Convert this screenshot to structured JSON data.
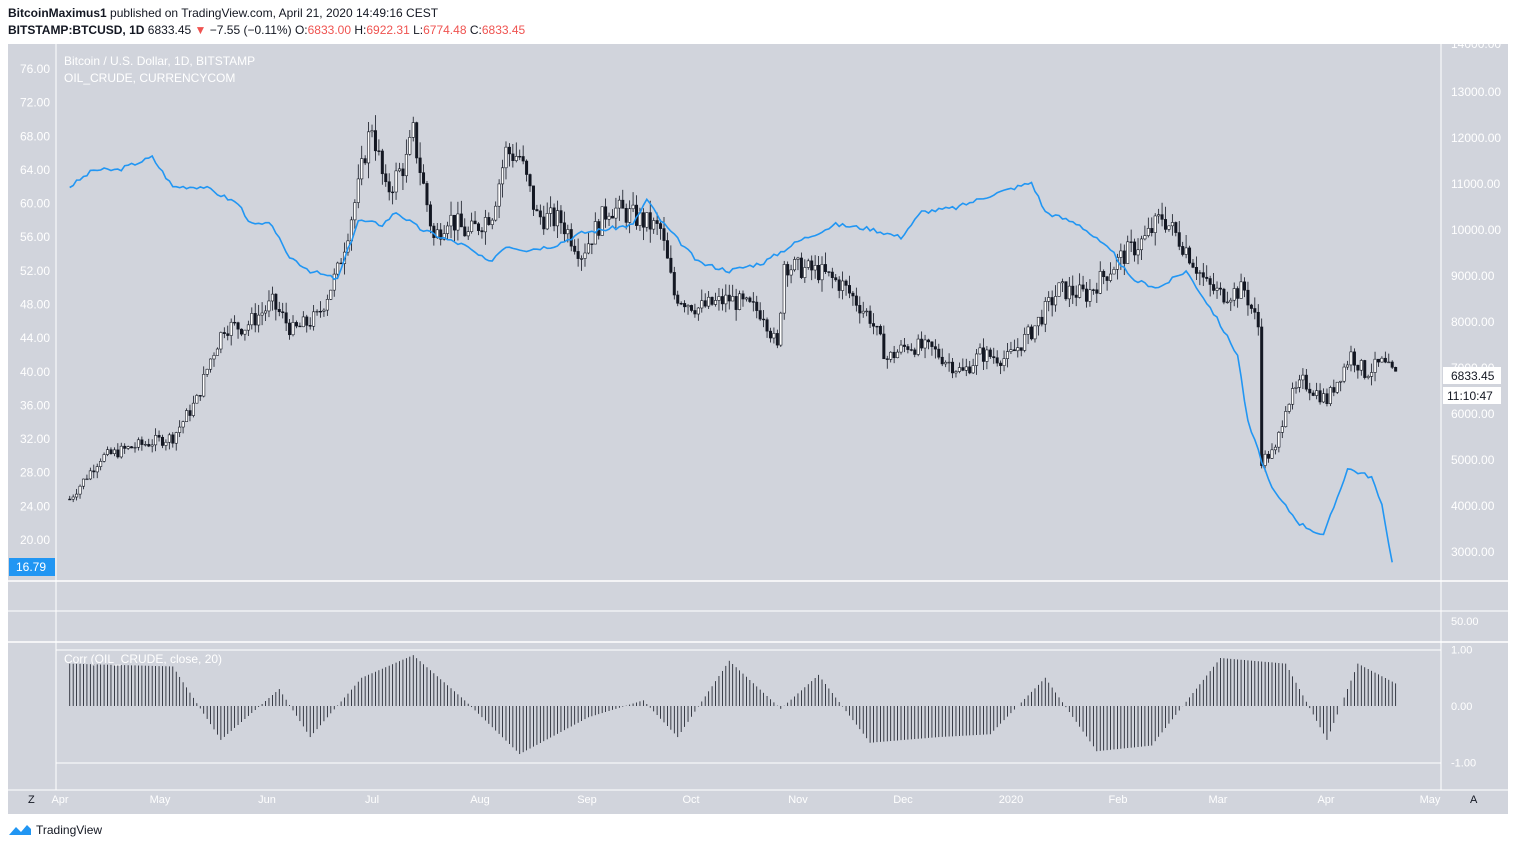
{
  "header": {
    "author": "BitcoinMaximus1",
    "published_text": "published on TradingView.com, April 21, 2020 14:49:16 CEST",
    "symbol": "BITSTAMP:BTCUSD, 1D",
    "price": "6833.45",
    "change_arrow": "▼",
    "change": "−7.55 (−0.11%)",
    "o_label": "O:",
    "o_value": "6833.00",
    "h_label": "H:",
    "h_value": "6922.31",
    "l_label": "L:",
    "l_value": "6774.48",
    "c_label": "C:",
    "c_value": "6833.45"
  },
  "legend": {
    "line1": "Bitcoin / U.S. Dollar, 1D, BITSTAMP",
    "line2": "OIL_CRUDE, CURRENCYCOM"
  },
  "indicator_label": "Corr (OIL_CRUDE, close, 20)",
  "price_tag": "6833.45",
  "countdown": "11:10:47",
  "oil_tag": "16.79",
  "middle_pane_label": "50.00",
  "footer": {
    "brand": "TradingView"
  },
  "corner_left": "Z",
  "corner_right": "A",
  "colors": {
    "oil": "#2196f3",
    "candle": "#131722",
    "pane_bg": "#d1d4dc",
    "red": "#ef5350"
  },
  "chart_data": {
    "type": "line",
    "x_ticks": [
      "Apr",
      "May",
      "Jun",
      "Jul",
      "Aug",
      "Sep",
      "Oct",
      "Nov",
      "Dec",
      "2020",
      "Feb",
      "Mar",
      "Apr",
      "May"
    ],
    "left_axis": {
      "label": "OIL_CRUDE",
      "ticks": [
        "76.00",
        "72.00",
        "68.00",
        "64.00",
        "60.00",
        "56.00",
        "52.00",
        "48.00",
        "44.00",
        "40.00",
        "36.00",
        "32.00",
        "28.00",
        "24.00",
        "20.00"
      ],
      "range": [
        17,
        78
      ]
    },
    "right_axis": {
      "label": "BTCUSD",
      "ticks": [
        "14000.00",
        "13000.00",
        "12000.00",
        "11000.00",
        "10000.00",
        "9000.00",
        "8000.00",
        "7000.00",
        "6000.00",
        "5000.00",
        "4000.00",
        "3000.00"
      ],
      "range": [
        2600,
        14000
      ]
    },
    "osc_axis": {
      "ticks": [
        "1.00",
        "0.00",
        "-1.00"
      ],
      "range": [
        -1,
        1
      ]
    },
    "series": [
      {
        "name": "Bitcoin / U.S. Dollar, 1D, BITSTAMP",
        "type": "candlestick-close",
        "axis": "right",
        "x": [
          "2019-04-01",
          "2019-04-10",
          "2019-04-20",
          "2019-05-01",
          "2019-05-08",
          "2019-05-12",
          "2019-05-16",
          "2019-05-22",
          "2019-05-30",
          "2019-06-05",
          "2019-06-12",
          "2019-06-18",
          "2019-06-24",
          "2019-06-26",
          "2019-06-28",
          "2019-07-02",
          "2019-07-08",
          "2019-07-10",
          "2019-07-16",
          "2019-07-20",
          "2019-07-26",
          "2019-08-02",
          "2019-08-06",
          "2019-08-10",
          "2019-08-15",
          "2019-08-22",
          "2019-08-28",
          "2019-09-05",
          "2019-09-12",
          "2019-09-20",
          "2019-09-24",
          "2019-10-01",
          "2019-10-10",
          "2019-10-20",
          "2019-10-24",
          "2019-10-26",
          "2019-10-28",
          "2019-11-05",
          "2019-11-12",
          "2019-11-20",
          "2019-11-25",
          "2019-12-01",
          "2019-12-08",
          "2019-12-17",
          "2019-12-22",
          "2019-12-30",
          "2020-01-06",
          "2020-01-14",
          "2020-01-22",
          "2020-02-01",
          "2020-02-08",
          "2020-02-13",
          "2020-02-20",
          "2020-02-26",
          "2020-03-01",
          "2020-03-08",
          "2020-03-12",
          "2020-03-13",
          "2020-03-17",
          "2020-03-20",
          "2020-03-25",
          "2020-04-01",
          "2020-04-08",
          "2020-04-12",
          "2020-04-17",
          "2020-04-21"
        ],
        "values": [
          4150,
          5050,
          5300,
          5500,
          6300,
          7200,
          7900,
          7900,
          8400,
          7800,
          8100,
          9100,
          10900,
          11700,
          12300,
          10800,
          11500,
          12100,
          9800,
          10300,
          9900,
          10400,
          11700,
          11600,
          10300,
          10200,
          9500,
          10500,
          10300,
          10000,
          8600,
          8300,
          8500,
          8200,
          7400,
          9300,
          9200,
          9100,
          8800,
          8100,
          7200,
          7500,
          7400,
          6900,
          7300,
          7200,
          7800,
          8700,
          8600,
          9400,
          9800,
          10300,
          9600,
          8800,
          8600,
          8700,
          7900,
          5000,
          5200,
          6200,
          6700,
          6300,
          7300,
          6900,
          7100,
          6833
        ]
      },
      {
        "name": "OIL_CRUDE, CURRENCYCOM",
        "type": "line",
        "axis": "left",
        "x": [
          "2019-04-01",
          "2019-04-08",
          "2019-04-15",
          "2019-04-25",
          "2019-05-01",
          "2019-05-10",
          "2019-05-20",
          "2019-05-24",
          "2019-05-30",
          "2019-06-03",
          "2019-06-10",
          "2019-06-18",
          "2019-06-24",
          "2019-07-01",
          "2019-07-05",
          "2019-07-12",
          "2019-07-18",
          "2019-07-25",
          "2019-08-01",
          "2019-08-06",
          "2019-08-12",
          "2019-08-20",
          "2019-08-28",
          "2019-09-05",
          "2019-09-12",
          "2019-09-16",
          "2019-09-20",
          "2019-10-01",
          "2019-10-10",
          "2019-10-20",
          "2019-10-30",
          "2019-11-10",
          "2019-11-20",
          "2019-11-29",
          "2019-12-05",
          "2019-12-15",
          "2019-12-25",
          "2020-01-06",
          "2020-01-10",
          "2020-01-20",
          "2020-01-30",
          "2020-02-04",
          "2020-02-12",
          "2020-02-20",
          "2020-02-28",
          "2020-03-06",
          "2020-03-09",
          "2020-03-16",
          "2020-03-24",
          "2020-03-31",
          "2020-04-07",
          "2020-04-14",
          "2020-04-17",
          "2020-04-20"
        ],
        "values": [
          62,
          64,
          64,
          65.5,
          62,
          62,
          60,
          57.5,
          57.5,
          54,
          52,
          51,
          58,
          57.5,
          59,
          57,
          56,
          55,
          53,
          55,
          54.5,
          55,
          56.5,
          57,
          57.5,
          60.5,
          58,
          53,
          52,
          53,
          55.5,
          57.5,
          57,
          56,
          59,
          59.5,
          61,
          62.5,
          59,
          57.5,
          54,
          51,
          50,
          52,
          47,
          42,
          34,
          26,
          22,
          20.5,
          28.5,
          27.5,
          24,
          17.5
        ]
      },
      {
        "name": "Corr (OIL_CRUDE, close, 20)",
        "type": "histogram",
        "axis": "osc",
        "x": [
          "2019-04-01",
          "2019-05-01",
          "2019-05-15",
          "2019-06-01",
          "2019-06-10",
          "2019-06-25",
          "2019-07-10",
          "2019-07-25",
          "2019-08-10",
          "2019-08-30",
          "2019-09-15",
          "2019-09-25",
          "2019-10-10",
          "2019-10-25",
          "2019-11-05",
          "2019-11-20",
          "2019-12-10",
          "2019-12-25",
          "2020-01-10",
          "2020-01-25",
          "2020-02-10",
          "2020-03-01",
          "2020-03-20",
          "2020-04-01",
          "2020-04-10",
          "2020-04-21"
        ],
        "values": [
          0.75,
          0.7,
          -0.6,
          0.3,
          -0.55,
          0.5,
          0.9,
          0.1,
          -0.85,
          -0.2,
          0.1,
          -0.55,
          0.8,
          -0.05,
          0.55,
          -0.65,
          -0.55,
          -0.5,
          0.5,
          -0.8,
          -0.7,
          0.85,
          0.75,
          -0.6,
          0.75,
          0.4
        ]
      }
    ],
    "grid": false,
    "legend": "top-left"
  }
}
